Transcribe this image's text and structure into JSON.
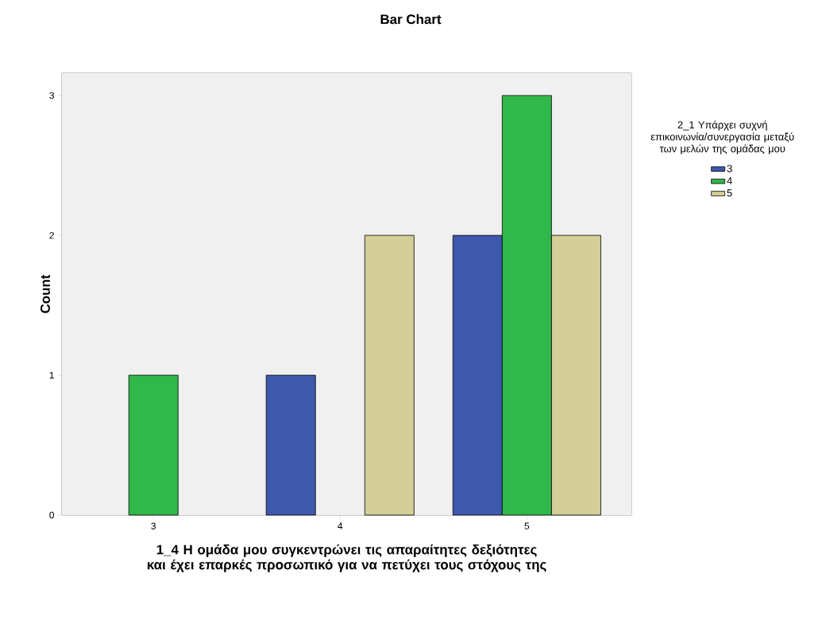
{
  "chart_data": {
    "type": "bar",
    "title": "Bar Chart",
    "xlabel": "1_4 Η ομάδα μου συγκεντρώνει τις απαραίτητες δεξιότητες και έχει επαρκές προσωπικό για να πετύχει τους στόχους της",
    "ylabel": "Count",
    "legend_title": "2_1 Υπάρχει συχνή επικοινωνία/συνεργασία μεταξύ των μελών της ομάδας μου",
    "categories": [
      "3",
      "4",
      "5"
    ],
    "series": [
      {
        "name": "3",
        "color": "#3e58ac",
        "values": [
          null,
          1,
          2
        ]
      },
      {
        "name": "4",
        "color": "#30b84b",
        "values": [
          1,
          null,
          3
        ]
      },
      {
        "name": "5",
        "color": "#d4cf98",
        "values": [
          null,
          2,
          2
        ]
      }
    ],
    "ylim": [
      0,
      3.16
    ],
    "yticks": [
      0,
      1,
      2,
      3
    ],
    "grid": false,
    "legend": "top right"
  }
}
